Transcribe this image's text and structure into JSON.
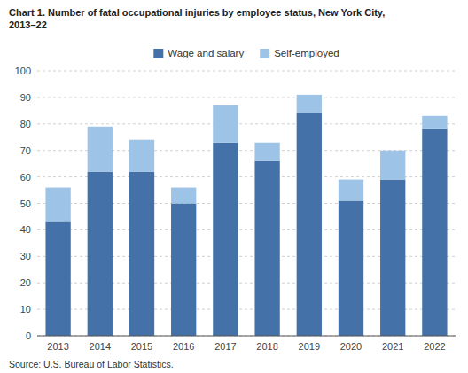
{
  "chart_data": {
    "type": "bar",
    "title": "Chart 1.  Number of fatal occupational injuries by employee status, New York City,\n2013–22",
    "source": "Source: U.S. Bureau of Labor Statistics.",
    "categories": [
      "2013",
      "2014",
      "2015",
      "2016",
      "2017",
      "2018",
      "2019",
      "2020",
      "2021",
      "2022"
    ],
    "series": [
      {
        "name": "Wage and salary",
        "color": "#4472a8",
        "values": [
          43,
          62,
          62,
          50,
          73,
          66,
          84,
          51,
          59,
          78
        ]
      },
      {
        "name": "Self-employed",
        "color": "#9dc3e6",
        "values": [
          13,
          17,
          12,
          6,
          14,
          7,
          7,
          8,
          11,
          5
        ]
      }
    ],
    "stacked": true,
    "ylim": [
      0,
      100
    ],
    "yticks": [
      0,
      10,
      20,
      30,
      40,
      50,
      60,
      70,
      80,
      90,
      100
    ],
    "grid": true,
    "legend": "top"
  }
}
